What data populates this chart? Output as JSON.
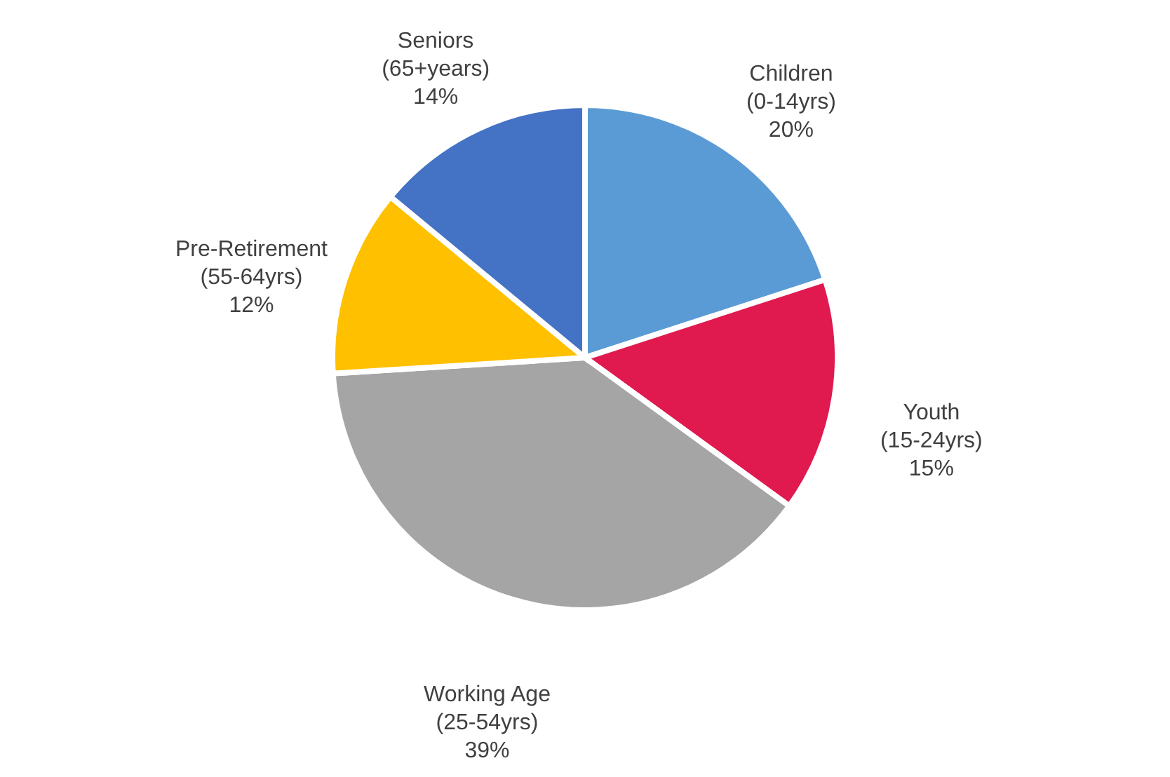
{
  "chart_data": {
    "type": "pie",
    "categories": [
      "Children (0-14yrs)",
      "Youth (15-24yrs)",
      "Working Age (25-54yrs)",
      "Pre-Retirement (55-64yrs)",
      "Seniors (65+years)"
    ],
    "values": [
      20,
      15,
      39,
      12,
      14
    ],
    "value_labels": [
      "20%",
      "15%",
      "39%",
      "12%",
      "14%"
    ],
    "colors": [
      "#5b9bd5",
      "#e0194f",
      "#a5a5a5",
      "#ffc000",
      "#4472c4"
    ]
  }
}
